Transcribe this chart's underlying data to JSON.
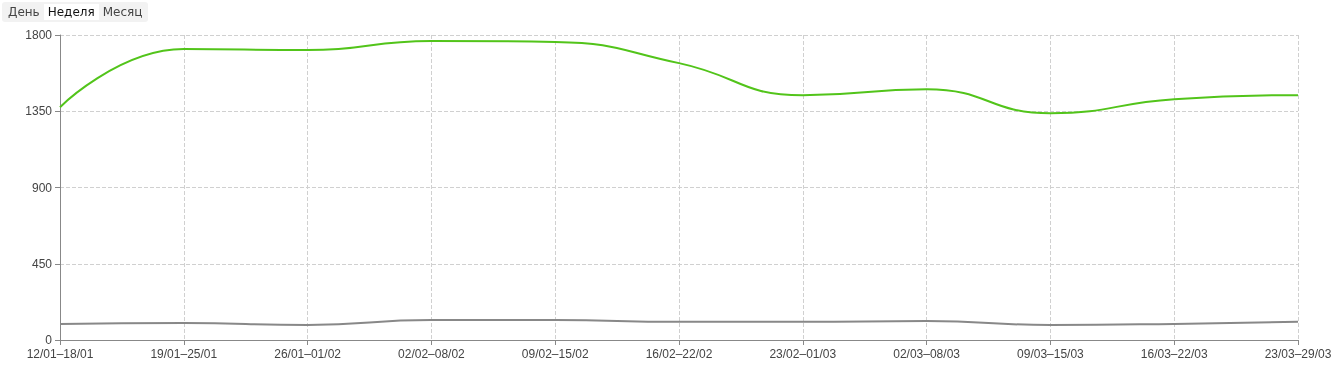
{
  "chart_data": {
    "type": "line",
    "categories": [
      "12/01–18/01",
      "19/01–25/01",
      "26/01–01/02",
      "02/02–08/02",
      "09/02–15/02",
      "16/02–22/02",
      "23/02–01/03",
      "02/03–08/03",
      "09/03–15/03",
      "16/03–22/03",
      "23/03–29/03"
    ],
    "series": [
      {
        "color": "#52c41a",
        "values": [
          1374,
          1717,
          1711,
          1765,
          1759,
          1634,
          1445,
          1480,
          1338,
          1421,
          1445
        ]
      },
      {
        "color": "#888888",
        "values": [
          95,
          101,
          89,
          118,
          118,
          107,
          107,
          112,
          89,
          95,
          107
        ]
      }
    ],
    "ylim": [
      0,
      1800
    ],
    "yticks": [
      0,
      450,
      900,
      1350,
      1800
    ],
    "grid": true,
    "marker": "none",
    "line_style": "solid",
    "annotations": [
      "День",
      "Неделя",
      "Месяц"
    ]
  }
}
